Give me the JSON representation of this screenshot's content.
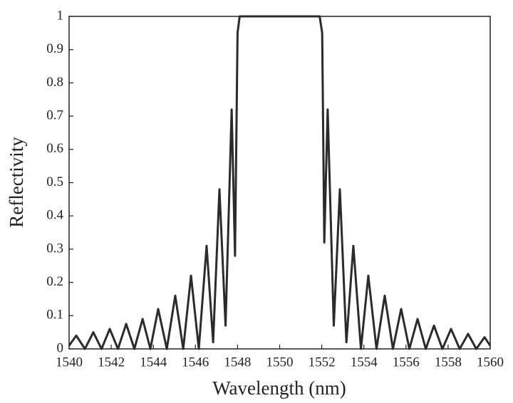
{
  "chart_data": {
    "type": "line",
    "x_label": "Wavelength (nm)",
    "y_label": "Reflectivity",
    "xlim": [
      1540,
      1560
    ],
    "ylim": [
      0,
      1
    ],
    "xticks": [
      1540,
      1542,
      1544,
      1546,
      1548,
      1550,
      1552,
      1554,
      1556,
      1558,
      1560
    ],
    "yticks": [
      0,
      0.1,
      0.2,
      0.3,
      0.4,
      0.5,
      0.6,
      0.7,
      0.8,
      0.9,
      1
    ],
    "series": [
      {
        "color": "#2b2b2b",
        "x": [
          1540.0,
          1540.34,
          1540.75,
          1541.15,
          1541.54,
          1541.93,
          1542.32,
          1542.71,
          1543.1,
          1543.49,
          1543.86,
          1544.23,
          1544.64,
          1545.04,
          1545.42,
          1545.79,
          1546.16,
          1546.53,
          1546.84,
          1547.14,
          1547.43,
          1547.72,
          1547.88,
          1548.0,
          1548.1,
          1551.9,
          1552.02,
          1552.12,
          1552.28,
          1552.57,
          1552.86,
          1553.17,
          1553.5,
          1553.86,
          1554.21,
          1554.6,
          1554.99,
          1555.38,
          1555.77,
          1556.16,
          1556.55,
          1556.94,
          1557.33,
          1557.73,
          1558.14,
          1558.55,
          1558.95,
          1559.34,
          1559.73,
          1560.0
        ],
        "values": [
          0.01,
          0.04,
          0,
          0.05,
          0,
          0.06,
          0,
          0.075,
          0,
          0.09,
          0,
          0.12,
          0,
          0.16,
          0,
          0.22,
          0,
          0.31,
          0.02,
          0.48,
          0.07,
          0.72,
          0.28,
          0.95,
          1,
          1,
          0.95,
          0.32,
          0.72,
          0.07,
          0.48,
          0.02,
          0.31,
          0,
          0.22,
          0,
          0.16,
          0,
          0.12,
          0,
          0.09,
          0,
          0.07,
          0,
          0.06,
          0,
          0.045,
          0,
          0.035,
          0.01
        ]
      }
    ]
  }
}
